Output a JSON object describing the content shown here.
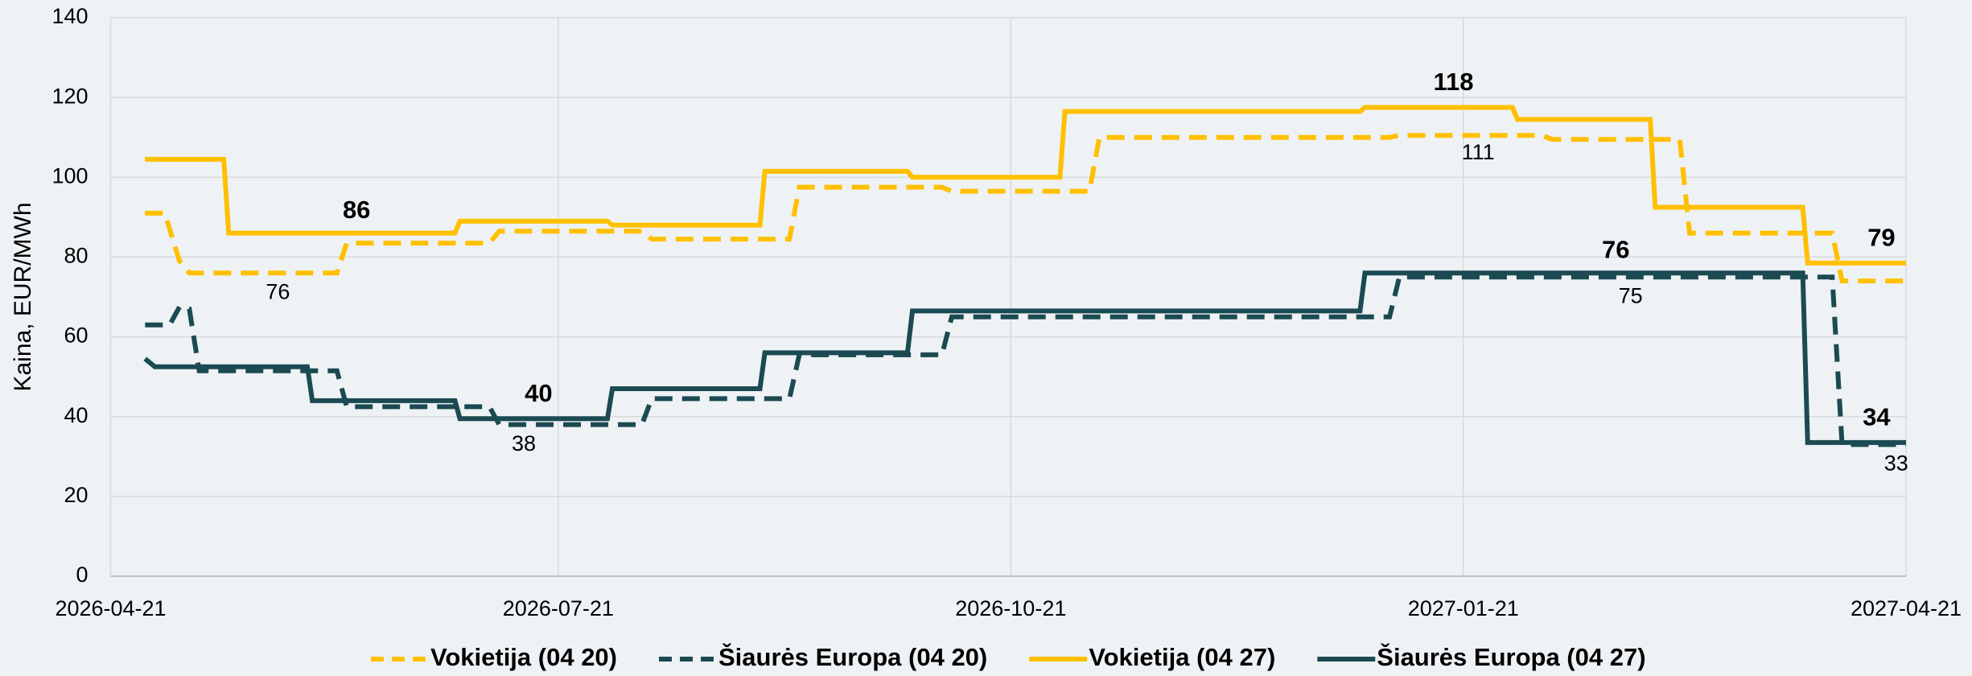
{
  "chart_data": {
    "type": "line",
    "y_label": "Kaina, EUR/MWh",
    "xlim": [
      "2026-04-21",
      "2027-04-21"
    ],
    "xticks": [
      "2026-04-21",
      "2026-07-21",
      "2026-10-21",
      "2027-01-21",
      "2027-04-21"
    ],
    "ylim": [
      0,
      140
    ],
    "yticks": [
      0,
      20,
      40,
      60,
      80,
      100,
      120,
      140
    ],
    "grid": true,
    "legend": "bottom",
    "series": [
      {
        "name": "Vokietija (04 20)",
        "color": "#FFC000",
        "dashed": true,
        "x": [
          "2026-04-28",
          "2026-05-02",
          "2026-05-05",
          "2026-05-07",
          "2026-06-06",
          "2026-06-08",
          "2026-07-07",
          "2026-07-09",
          "2026-08-07",
          "2026-08-09",
          "2026-09-06",
          "2026-09-08",
          "2026-10-07",
          "2026-10-09",
          "2026-11-06",
          "2026-11-08",
          "2027-01-06",
          "2027-01-08",
          "2027-02-06",
          "2027-02-08",
          "2027-03-06",
          "2027-03-08",
          "2027-04-06",
          "2027-04-08",
          "2027-04-21"
        ],
        "values": [
          91,
          91,
          79,
          76,
          76,
          83.5,
          83.5,
          86.5,
          86.5,
          84.5,
          84.5,
          97.5,
          97.5,
          96.5,
          96.5,
          110,
          110,
          110.5,
          110.5,
          109.5,
          109.5,
          86,
          86,
          74,
          74
        ],
        "labels": [
          {
            "x": "2026-05-25",
            "value": 76
          },
          {
            "x": "2027-01-24",
            "value": 111
          }
        ]
      },
      {
        "name": "Šiaurės Europa (04 20)",
        "color": "#1B4A52",
        "dashed": true,
        "x": [
          "2026-04-28",
          "2026-05-03",
          "2026-05-05",
          "2026-05-07",
          "2026-05-09",
          "2026-06-06",
          "2026-06-08",
          "2026-07-07",
          "2026-07-09",
          "2026-08-07",
          "2026-08-09",
          "2026-09-06",
          "2026-09-08",
          "2026-10-07",
          "2026-10-09",
          "2027-01-06",
          "2027-01-08",
          "2027-04-06",
          "2027-04-08",
          "2027-04-21"
        ],
        "values": [
          63,
          63,
          67.5,
          67,
          51.5,
          51.5,
          42.5,
          42.5,
          38,
          38,
          44.5,
          44.5,
          55.5,
          55.5,
          65,
          65,
          75,
          75,
          33,
          33
        ],
        "labels": [
          {
            "x": "2026-07-14",
            "value": 38
          },
          {
            "x": "2027-02-24",
            "value": 75
          },
          {
            "x": "2027-04-19",
            "value": 33
          }
        ]
      },
      {
        "name": "Vokietija (04 27)",
        "color": "#FFC000",
        "dashed": false,
        "x": [
          "2026-04-28",
          "2026-05-14",
          "2026-05-15",
          "2026-06-30",
          "2026-07-01",
          "2026-07-31",
          "2026-08-01",
          "2026-08-31",
          "2026-09-01",
          "2026-09-30",
          "2026-10-01",
          "2026-10-31",
          "2026-11-01",
          "2026-12-31",
          "2027-01-01",
          "2027-01-31",
          "2027-02-01",
          "2027-02-28",
          "2027-03-01",
          "2027-03-31",
          "2027-04-01",
          "2027-04-21"
        ],
        "values": [
          104.5,
          104.5,
          86,
          86,
          89,
          89,
          88,
          88,
          101.5,
          101.5,
          100,
          100,
          116.5,
          116.5,
          117.5,
          117.5,
          114.5,
          114.5,
          92.5,
          92.5,
          78.5,
          78.5
        ],
        "labels": [
          {
            "x": "2026-06-10",
            "value": 86
          },
          {
            "x": "2027-01-19",
            "value": 118
          },
          {
            "x": "2027-04-16",
            "value": 79
          }
        ]
      },
      {
        "name": "Šiaurės Europa (04 27)",
        "color": "#1B4A52",
        "dashed": false,
        "x": [
          "2026-04-28",
          "2026-04-30",
          "2026-05-31",
          "2026-06-01",
          "2026-06-30",
          "2026-07-01",
          "2026-07-31",
          "2026-08-01",
          "2026-08-31",
          "2026-09-01",
          "2026-09-30",
          "2026-10-01",
          "2026-12-31",
          "2027-01-01",
          "2027-03-31",
          "2027-04-01",
          "2027-04-21"
        ],
        "values": [
          54.5,
          52.5,
          52.5,
          44,
          44,
          39.5,
          39.5,
          47,
          47,
          56,
          56,
          66.5,
          66.5,
          76,
          76,
          33.5,
          33.5
        ],
        "labels": [
          {
            "x": "2026-07-17",
            "value": 40
          },
          {
            "x": "2027-02-21",
            "value": 76
          },
          {
            "x": "2027-04-15",
            "value": 34
          }
        ]
      }
    ]
  }
}
